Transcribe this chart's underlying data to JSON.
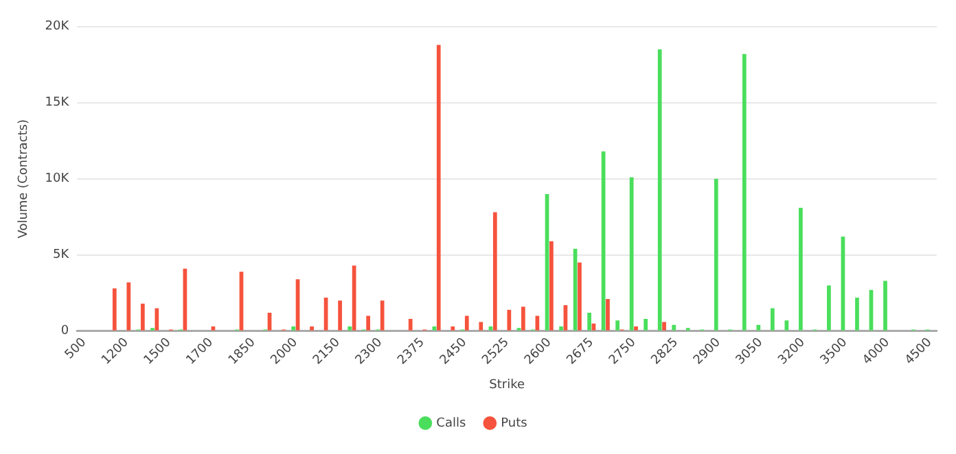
{
  "chart_data": {
    "type": "bar",
    "xlabel": "Strike",
    "ylabel": "Volume (Contracts)",
    "categories": [
      "500",
      null,
      null,
      "1200",
      null,
      null,
      "1500",
      null,
      null,
      "1700",
      null,
      null,
      "1850",
      null,
      null,
      "2000",
      null,
      null,
      "2150",
      null,
      null,
      "2300",
      null,
      null,
      "2375",
      null,
      null,
      "2450",
      null,
      null,
      "2525",
      null,
      null,
      "2600",
      null,
      null,
      "2675",
      null,
      null,
      "2750",
      null,
      null,
      "2825",
      null,
      null,
      "2900",
      null,
      null,
      "3050",
      null,
      null,
      "3200",
      null,
      null,
      "3500",
      null,
      null,
      "4000",
      null,
      null,
      "4500"
    ],
    "series": [
      {
        "name": "Calls",
        "color": "#4ade5c",
        "values": [
          null,
          null,
          null,
          null,
          100,
          200,
          null,
          100,
          null,
          null,
          null,
          100,
          null,
          100,
          null,
          300,
          null,
          null,
          null,
          300,
          100,
          100,
          null,
          null,
          null,
          300,
          null,
          100,
          null,
          300,
          null,
          200,
          100,
          9000,
          300,
          5400,
          1200,
          11800,
          700,
          10100,
          800,
          18500,
          400,
          200,
          100,
          10000,
          100,
          18200,
          400,
          1500,
          700,
          8100,
          100,
          3000,
          6200,
          2200,
          2700,
          3300,
          null,
          100,
          100
        ]
      },
      {
        "name": "Puts",
        "color": "#f5533d",
        "values": [
          null,
          null,
          2800,
          3200,
          1800,
          1500,
          100,
          4100,
          null,
          300,
          null,
          3900,
          null,
          1200,
          100,
          3400,
          300,
          2200,
          2000,
          4300,
          1000,
          2000,
          null,
          800,
          100,
          18800,
          300,
          1000,
          600,
          7800,
          1400,
          1600,
          1000,
          5900,
          1700,
          4500,
          500,
          2100,
          100,
          300,
          null,
          600,
          null,
          null,
          null,
          null,
          null,
          null,
          null,
          null,
          null,
          null,
          null,
          null,
          null,
          null,
          null,
          null,
          null,
          null,
          null
        ]
      }
    ],
    "ylim": [
      0,
      20000
    ],
    "yticks": [
      0,
      {
        "value": 5000,
        "label": "5K"
      },
      {
        "value": 10000,
        "label": "10K"
      },
      {
        "value": 15000,
        "label": "15K"
      },
      {
        "value": 20000,
        "label": "20K"
      }
    ],
    "grid": "y",
    "legend": "bottom"
  }
}
